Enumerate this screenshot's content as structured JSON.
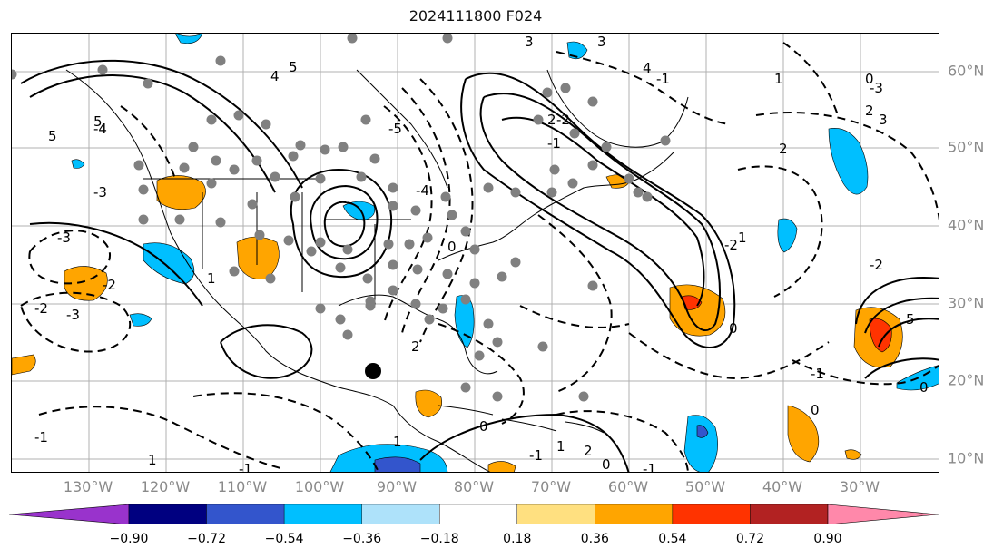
{
  "title": "2024111800 F024",
  "lon_labels": [
    "130°W",
    "120°W",
    "110°W",
    "100°W",
    "90°W",
    "80°W",
    "70°W",
    "60°W",
    "50°W",
    "40°W",
    "30°W"
  ],
  "lat_labels": [
    "60°N",
    "50°N",
    "40°N",
    "30°N",
    "20°N",
    "10°N"
  ],
  "colorbar": {
    "ticks": [
      "−0.90",
      "−0.72",
      "−0.54",
      "−0.36",
      "−0.18",
      "0.18",
      "0.36",
      "0.54",
      "0.72",
      "0.90"
    ],
    "colors": [
      "#9933cc",
      "#000080",
      "#3355cc",
      "#00bfff",
      "#aee2fa",
      "#ffffff",
      "#ffe080",
      "#ffa500",
      "#ff3300",
      "#b22222",
      "#ff88aa"
    ]
  },
  "contour_labels": [
    "5",
    "4",
    "5",
    "3",
    "2",
    "3",
    "5",
    "4",
    "-1",
    "-2",
    "-3",
    "1",
    "0",
    "-1",
    "-2",
    "2",
    "3",
    "-3",
    "-4",
    "-5",
    "0",
    "1",
    "2",
    "0",
    "-1",
    "-2",
    "-3",
    "-2",
    "2",
    "5",
    "-2",
    "-3",
    "1",
    "2",
    "0",
    "-1",
    "-1",
    "0",
    "1",
    "-1",
    "0",
    "1",
    "-1",
    "1",
    "0",
    "-4"
  ],
  "colors": {
    "axis_label": "#8a8a8a",
    "contour": "#000000",
    "grid": "#b0b0b0",
    "coast": "#000000",
    "station": "#808080"
  },
  "markers": {
    "storm": "storm-center"
  }
}
